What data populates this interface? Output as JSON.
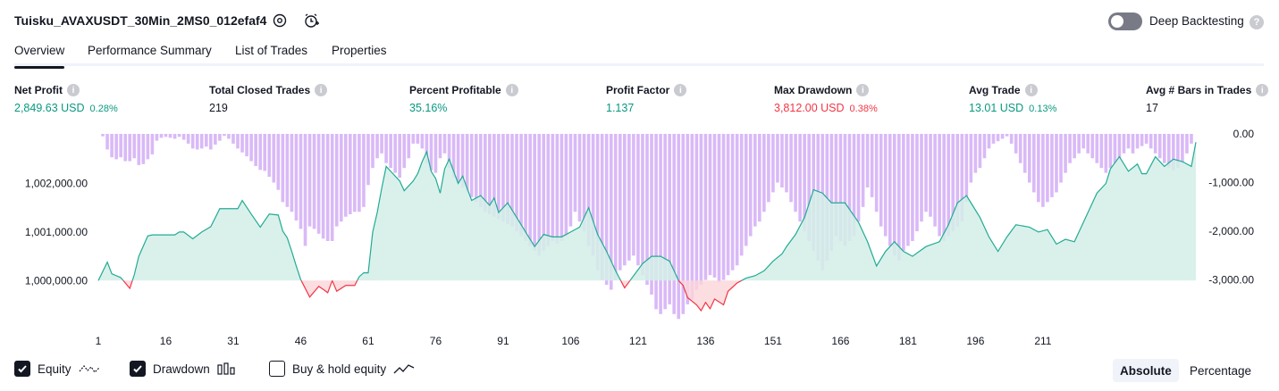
{
  "header": {
    "title": "Tuisku_AVAXUSDT_30Min_2MS0_012efaf4",
    "deep_backtesting_label": "Deep Backtesting",
    "deep_backtesting_enabled": false
  },
  "tabs": [
    {
      "label": "Overview",
      "active": true
    },
    {
      "label": "Performance Summary",
      "active": false
    },
    {
      "label": "List of Trades",
      "active": false
    },
    {
      "label": "Properties",
      "active": false
    }
  ],
  "metrics": [
    {
      "label": "Net Profit",
      "value": "2,849.63 USD",
      "pct": "0.28%",
      "color": "#089981"
    },
    {
      "label": "Total Closed Trades",
      "value": "219",
      "pct": "",
      "color": "#131722"
    },
    {
      "label": "Percent Profitable",
      "value": "35.16%",
      "pct": "",
      "color": "#089981"
    },
    {
      "label": "Profit Factor",
      "value": "1.137",
      "pct": "",
      "color": "#089981"
    },
    {
      "label": "Max Drawdown",
      "value": "3,812.00 USD",
      "pct": "0.38%",
      "color": "#f23645"
    },
    {
      "label": "Avg Trade",
      "value": "13.01 USD",
      "pct": "0.13%",
      "color": "#089981"
    },
    {
      "label": "Avg # Bars in Trades",
      "value": "17",
      "pct": "",
      "color": "#131722"
    }
  ],
  "chart_data": {
    "type": "area",
    "x_ticks": [
      "1",
      "16",
      "31",
      "46",
      "61",
      "76",
      "91",
      "106",
      "121",
      "136",
      "151",
      "166",
      "181",
      "196",
      "211"
    ],
    "left_axis": {
      "ticks": [
        "1,002,000.00",
        "1,001,000.00",
        "1,000,000.00"
      ],
      "values": [
        1002000,
        1001000,
        1000000
      ],
      "range": [
        999160,
        1003020
      ]
    },
    "right_axis": {
      "ticks": [
        "0.00",
        "-1,000.00",
        "-2,000.00",
        "-3,000.00"
      ],
      "values": [
        0,
        -1000,
        -2000,
        -3000
      ],
      "range": [
        -3850,
        0
      ]
    },
    "baseline": 1000000,
    "colors": {
      "equity_line": "#22ab94",
      "equity_fill": "#d4efe7",
      "loss_line": "#f23645",
      "loss_fill": "#fbd6da",
      "drawdown_bar": "#d9b9f7"
    },
    "equity": [
      [
        1,
        1000000
      ],
      [
        3,
        1000380
      ],
      [
        4,
        1000140
      ],
      [
        6,
        1000060
      ],
      [
        8,
        999840
      ],
      [
        9,
        1000120
      ],
      [
        10,
        1000500
      ],
      [
        12,
        1000920
      ],
      [
        13,
        1000940
      ],
      [
        18,
        1000940
      ],
      [
        19,
        1001000
      ],
      [
        20,
        1001000
      ],
      [
        22,
        1000860
      ],
      [
        24,
        1001000
      ],
      [
        26,
        1001110
      ],
      [
        28,
        1001480
      ],
      [
        32,
        1001480
      ],
      [
        33,
        1001650
      ],
      [
        35,
        1001370
      ],
      [
        37,
        1001100
      ],
      [
        39,
        1001370
      ],
      [
        41,
        1001350
      ],
      [
        42,
        1001020
      ],
      [
        43,
        1000880
      ],
      [
        44,
        1000600
      ],
      [
        45,
        1000300
      ],
      [
        46,
        1000020
      ],
      [
        48,
        999660
      ],
      [
        50,
        999880
      ],
      [
        51,
        999820
      ],
      [
        52,
        999750
      ],
      [
        53,
        1000000
      ],
      [
        54,
        999780
      ],
      [
        56,
        999900
      ],
      [
        58,
        999900
      ],
      [
        59,
        1000080
      ],
      [
        60,
        1000160
      ],
      [
        61,
        1000160
      ],
      [
        62,
        1001000
      ],
      [
        63,
        1001400
      ],
      [
        64,
        1001900
      ],
      [
        65,
        1002350
      ],
      [
        66,
        1002250
      ],
      [
        67,
        1002150
      ],
      [
        68,
        1002050
      ],
      [
        69,
        1001850
      ],
      [
        70,
        1001950
      ],
      [
        71,
        1002050
      ],
      [
        72,
        1002200
      ],
      [
        73,
        1002450
      ],
      [
        74,
        1002650
      ],
      [
        75,
        1002250
      ],
      [
        76,
        1002100
      ],
      [
        77,
        1001800
      ],
      [
        78,
        1002300
      ],
      [
        79,
        1002500
      ],
      [
        80,
        1002250
      ],
      [
        81,
        1002000
      ],
      [
        82,
        1002150
      ],
      [
        83,
        1001900
      ],
      [
        84,
        1001650
      ],
      [
        86,
        1001750
      ],
      [
        88,
        1001550
      ],
      [
        89,
        1001700
      ],
      [
        90,
        1001400
      ],
      [
        92,
        1001600
      ],
      [
        94,
        1001300
      ],
      [
        96,
        1001000
      ],
      [
        98,
        1000700
      ],
      [
        100,
        1000950
      ],
      [
        102,
        1000900
      ],
      [
        104,
        1000900
      ],
      [
        106,
        1001000
      ],
      [
        108,
        1001100
      ],
      [
        110,
        1001500
      ],
      [
        112,
        1000950
      ],
      [
        114,
        1000600
      ],
      [
        116,
        1000200
      ],
      [
        118,
        999850
      ],
      [
        120,
        1000100
      ],
      [
        122,
        1000350
      ],
      [
        124,
        1000500
      ],
      [
        126,
        1000500
      ],
      [
        128,
        1000400
      ],
      [
        130,
        1000000
      ],
      [
        131,
        999900
      ],
      [
        132,
        999650
      ],
      [
        134,
        999500
      ],
      [
        135,
        999380
      ],
      [
        136,
        999550
      ],
      [
        137,
        999420
      ],
      [
        138,
        999620
      ],
      [
        140,
        999500
      ],
      [
        141,
        999780
      ],
      [
        143,
        999950
      ],
      [
        145,
        1000050
      ],
      [
        147,
        1000100
      ],
      [
        149,
        1000200
      ],
      [
        151,
        1000400
      ],
      [
        153,
        1000550
      ],
      [
        154,
        1000700
      ],
      [
        156,
        1000950
      ],
      [
        158,
        1001300
      ],
      [
        160,
        1001870
      ],
      [
        162,
        1001800
      ],
      [
        164,
        1001600
      ],
      [
        167,
        1001600
      ],
      [
        170,
        1001200
      ],
      [
        172,
        1000800
      ],
      [
        174,
        1000300
      ],
      [
        176,
        1000600
      ],
      [
        178,
        1000800
      ],
      [
        180,
        1000600
      ],
      [
        182,
        1000500
      ],
      [
        185,
        1000700
      ],
      [
        188,
        1000800
      ],
      [
        190,
        1001150
      ],
      [
        192,
        1001600
      ],
      [
        194,
        1001750
      ],
      [
        195,
        1001600
      ],
      [
        197,
        1001300
      ],
      [
        199,
        1000900
      ],
      [
        201,
        1000600
      ],
      [
        203,
        1000900
      ],
      [
        205,
        1001150
      ],
      [
        208,
        1001100
      ],
      [
        210,
        1001000
      ],
      [
        212,
        1001050
      ],
      [
        214,
        1000750
      ],
      [
        216,
        1000850
      ],
      [
        218,
        1000800
      ],
      [
        219,
        1001000
      ],
      [
        221,
        1001400
      ],
      [
        223,
        1001800
      ],
      [
        225,
        1002000
      ],
      [
        226,
        1002300
      ],
      [
        228,
        1002550
      ],
      [
        230,
        1002250
      ],
      [
        232,
        1002400
      ],
      [
        233,
        1002200
      ],
      [
        234,
        1002200
      ],
      [
        236,
        1002550
      ],
      [
        238,
        1002350
      ],
      [
        240,
        1002500
      ],
      [
        242,
        1002450
      ],
      [
        244,
        1002350
      ],
      [
        245,
        1002850
      ]
    ],
    "drawdown": [
      [
        2,
        -50
      ],
      [
        3,
        -320
      ],
      [
        4,
        -480
      ],
      [
        5,
        -520
      ],
      [
        6,
        -480
      ],
      [
        7,
        -560
      ],
      [
        8,
        -560
      ],
      [
        9,
        -500
      ],
      [
        10,
        -640
      ],
      [
        11,
        -620
      ],
      [
        12,
        -520
      ],
      [
        13,
        -420
      ],
      [
        14,
        -140
      ],
      [
        15,
        -80
      ],
      [
        16,
        -60
      ],
      [
        17,
        -80
      ],
      [
        18,
        -100
      ],
      [
        19,
        -60
      ],
      [
        20,
        -120
      ],
      [
        21,
        -200
      ],
      [
        22,
        -300
      ],
      [
        23,
        -320
      ],
      [
        24,
        -300
      ],
      [
        25,
        -260
      ],
      [
        26,
        -320
      ],
      [
        27,
        -220
      ],
      [
        28,
        -140
      ],
      [
        29,
        -40
      ],
      [
        30,
        -100
      ],
      [
        31,
        -200
      ],
      [
        32,
        -300
      ],
      [
        33,
        -380
      ],
      [
        34,
        -460
      ],
      [
        35,
        -560
      ],
      [
        36,
        -660
      ],
      [
        37,
        -740
      ],
      [
        38,
        -760
      ],
      [
        39,
        -880
      ],
      [
        40,
        -1000
      ],
      [
        41,
        -1150
      ],
      [
        42,
        -1400
      ],
      [
        43,
        -1500
      ],
      [
        44,
        -1600
      ],
      [
        45,
        -1780
      ],
      [
        46,
        -1950
      ],
      [
        47,
        -2300
      ],
      [
        48,
        -1900
      ],
      [
        49,
        -1950
      ],
      [
        50,
        -2050
      ],
      [
        51,
        -2150
      ],
      [
        52,
        -2200
      ],
      [
        53,
        -2200
      ],
      [
        54,
        -1900
      ],
      [
        55,
        -1800
      ],
      [
        56,
        -1700
      ],
      [
        57,
        -1650
      ],
      [
        58,
        -1600
      ],
      [
        59,
        -1600
      ],
      [
        60,
        -1500
      ],
      [
        61,
        -1050
      ],
      [
        62,
        -700
      ],
      [
        63,
        -500
      ],
      [
        64,
        -400
      ],
      [
        65,
        -600
      ],
      [
        66,
        -700
      ],
      [
        67,
        -800
      ],
      [
        68,
        -900
      ],
      [
        69,
        -700
      ],
      [
        70,
        -500
      ],
      [
        71,
        -200
      ],
      [
        72,
        -200
      ],
      [
        73,
        -300
      ],
      [
        74,
        -600
      ],
      [
        75,
        -750
      ],
      [
        76,
        -800
      ],
      [
        77,
        -500
      ],
      [
        78,
        -400
      ],
      [
        79,
        -700
      ],
      [
        80,
        -900
      ],
      [
        81,
        -1000
      ],
      [
        82,
        -1100
      ],
      [
        83,
        -1200
      ],
      [
        84,
        -1300
      ],
      [
        85,
        -1400
      ],
      [
        86,
        -1500
      ],
      [
        87,
        -1600
      ],
      [
        88,
        -1650
      ],
      [
        89,
        -1700
      ],
      [
        90,
        -1750
      ],
      [
        91,
        -1800
      ],
      [
        92,
        -1850
      ],
      [
        93,
        -1900
      ],
      [
        94,
        -2000
      ],
      [
        95,
        -2100
      ],
      [
        96,
        -2200
      ],
      [
        97,
        -2300
      ],
      [
        98,
        -2400
      ],
      [
        99,
        -2500
      ],
      [
        100,
        -2400
      ],
      [
        101,
        -2300
      ],
      [
        102,
        -2200
      ],
      [
        103,
        -2250
      ],
      [
        104,
        -2200
      ],
      [
        105,
        -2100
      ],
      [
        106,
        -1900
      ],
      [
        107,
        -1600
      ],
      [
        108,
        -1800
      ],
      [
        109,
        -2000
      ],
      [
        110,
        -2300
      ],
      [
        111,
        -2500
      ],
      [
        112,
        -2800
      ],
      [
        113,
        -3000
      ],
      [
        114,
        -3100
      ],
      [
        115,
        -3200
      ],
      [
        116,
        -3000
      ],
      [
        117,
        -2800
      ],
      [
        118,
        -2700
      ],
      [
        119,
        -2600
      ],
      [
        120,
        -2500
      ],
      [
        121,
        -2700
      ],
      [
        122,
        -2900
      ],
      [
        123,
        -3100
      ],
      [
        124,
        -3300
      ],
      [
        125,
        -3600
      ],
      [
        126,
        -3700
      ],
      [
        127,
        -3600
      ],
      [
        128,
        -3500
      ],
      [
        129,
        -3700
      ],
      [
        130,
        -3800
      ],
      [
        131,
        -3700
      ],
      [
        132,
        -3500
      ],
      [
        133,
        -3400
      ],
      [
        134,
        -3200
      ],
      [
        135,
        -3100
      ],
      [
        136,
        -3000
      ],
      [
        137,
        -2900
      ],
      [
        138,
        -2950
      ],
      [
        139,
        -3050
      ],
      [
        140,
        -3000
      ],
      [
        141,
        -2900
      ],
      [
        142,
        -2800
      ],
      [
        143,
        -2700
      ],
      [
        144,
        -2500
      ],
      [
        145,
        -2300
      ],
      [
        146,
        -2100
      ],
      [
        147,
        -1900
      ],
      [
        148,
        -1800
      ],
      [
        149,
        -1600
      ],
      [
        150,
        -1400
      ],
      [
        151,
        -1200
      ],
      [
        152,
        -1000
      ],
      [
        153,
        -1100
      ],
      [
        154,
        -1200
      ],
      [
        155,
        -1400
      ],
      [
        156,
        -1600
      ],
      [
        157,
        -1800
      ],
      [
        158,
        -2000
      ],
      [
        159,
        -2200
      ],
      [
        160,
        -2400
      ],
      [
        161,
        -2600
      ],
      [
        162,
        -2800
      ],
      [
        163,
        -2600
      ],
      [
        164,
        -2400
      ],
      [
        165,
        -2100
      ],
      [
        166,
        -2200
      ],
      [
        167,
        -2300
      ],
      [
        168,
        -2200
      ],
      [
        169,
        -2100
      ],
      [
        170,
        -1800
      ],
      [
        171,
        -1500
      ],
      [
        172,
        -1100
      ],
      [
        173,
        -1300
      ],
      [
        174,
        -1600
      ],
      [
        175,
        -1900
      ],
      [
        176,
        -2100
      ],
      [
        177,
        -2300
      ],
      [
        178,
        -2500
      ],
      [
        179,
        -2600
      ],
      [
        180,
        -2400
      ],
      [
        181,
        -2300
      ],
      [
        182,
        -2200
      ],
      [
        183,
        -2000
      ],
      [
        184,
        -1800
      ],
      [
        185,
        -1600
      ],
      [
        186,
        -1700
      ],
      [
        187,
        -1900
      ],
      [
        188,
        -2100
      ],
      [
        189,
        -2200
      ],
      [
        190,
        -2100
      ],
      [
        191,
        -2000
      ],
      [
        192,
        -1900
      ],
      [
        193,
        -1800
      ],
      [
        194,
        -1400
      ],
      [
        195,
        -1000
      ],
      [
        196,
        -800
      ],
      [
        197,
        -700
      ],
      [
        198,
        -500
      ],
      [
        199,
        -300
      ],
      [
        200,
        -200
      ],
      [
        201,
        -150
      ],
      [
        202,
        -100
      ],
      [
        203,
        -50
      ],
      [
        204,
        -200
      ],
      [
        205,
        -400
      ],
      [
        206,
        -600
      ],
      [
        207,
        -800
      ],
      [
        208,
        -1000
      ],
      [
        209,
        -1200
      ],
      [
        210,
        -1400
      ],
      [
        211,
        -1500
      ],
      [
        212,
        -1400
      ],
      [
        213,
        -1300
      ],
      [
        214,
        -1200
      ],
      [
        215,
        -1000
      ],
      [
        216,
        -800
      ],
      [
        217,
        -600
      ],
      [
        218,
        -500
      ],
      [
        219,
        -400
      ],
      [
        220,
        -300
      ],
      [
        221,
        -400
      ],
      [
        222,
        -500
      ],
      [
        223,
        -600
      ],
      [
        224,
        -700
      ],
      [
        225,
        -800
      ],
      [
        226,
        -700
      ],
      [
        227,
        -600
      ],
      [
        228,
        -500
      ],
      [
        229,
        -400
      ],
      [
        230,
        -300
      ],
      [
        231,
        -400
      ],
      [
        232,
        -300
      ],
      [
        233,
        -250
      ],
      [
        234,
        -200
      ],
      [
        235,
        -300
      ],
      [
        236,
        -400
      ],
      [
        237,
        -500
      ],
      [
        238,
        -600
      ],
      [
        239,
        -700
      ],
      [
        240,
        -750
      ],
      [
        241,
        -700
      ],
      [
        242,
        -600
      ],
      [
        243,
        -400
      ],
      [
        244,
        -200
      ]
    ]
  },
  "legend": {
    "equity": {
      "label": "Equity",
      "checked": true
    },
    "drawdown": {
      "label": "Drawdown",
      "checked": true
    },
    "buy_hold": {
      "label": "Buy & hold equity",
      "checked": false
    }
  },
  "mode_buttons": {
    "absolute": "Absolute",
    "percentage": "Percentage",
    "active": "absolute"
  }
}
